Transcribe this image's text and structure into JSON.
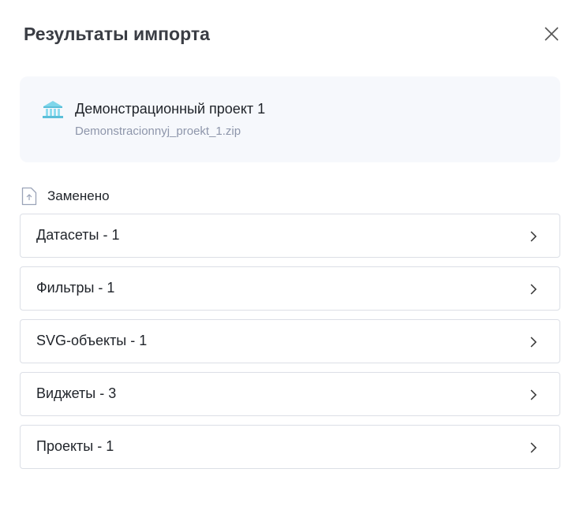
{
  "dialog": {
    "title": "Результаты импорта",
    "close_icon": "close-icon"
  },
  "project": {
    "icon": "bank-building-icon",
    "name": "Демонстрационный проект 1",
    "file": "Demonstracionnyj_proekt_1.zip"
  },
  "section": {
    "icon": "file-upload-icon",
    "label": "Заменено"
  },
  "items": [
    {
      "label": "Датасеты - 1"
    },
    {
      "label": "Фильтры - 1"
    },
    {
      "label": "SVG-объекты - 1"
    },
    {
      "label": "Виджеты - 3"
    },
    {
      "label": "Проекты - 1"
    }
  ]
}
